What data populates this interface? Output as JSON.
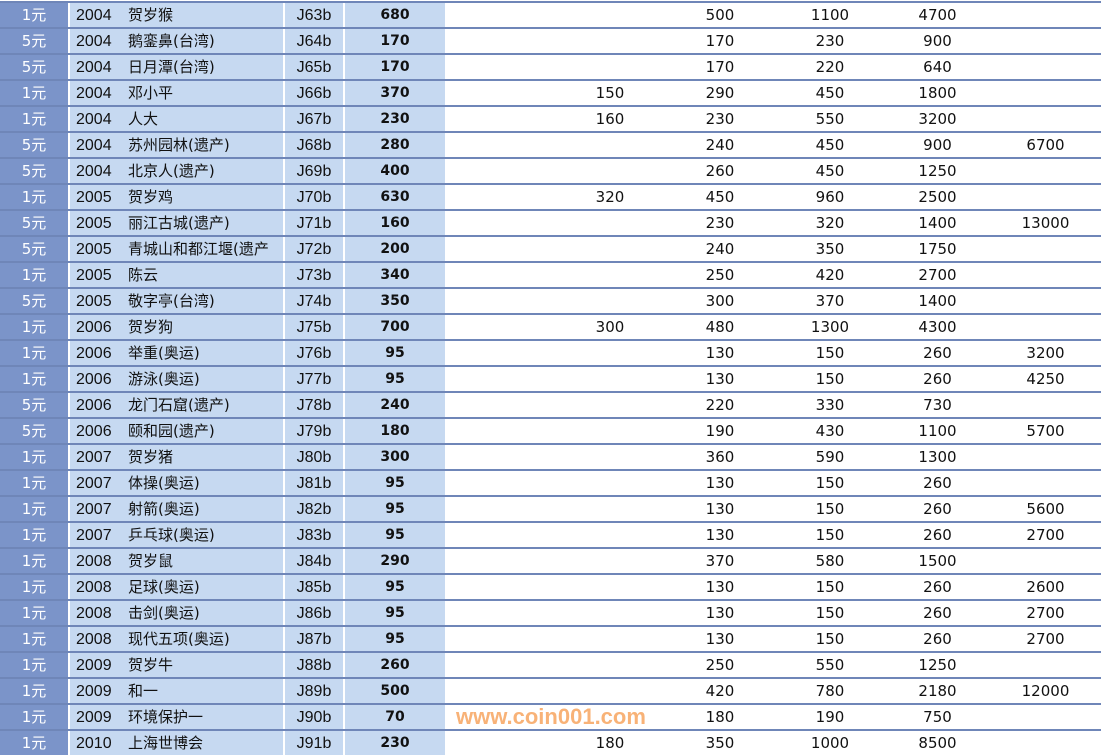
{
  "rows": [
    [
      "1元",
      "2004",
      "贺岁猴",
      "J63b",
      "680",
      "",
      "500",
      "1100",
      "4700",
      ""
    ],
    [
      "5元",
      "2004",
      "鹅銮鼻(台湾)",
      "J64b",
      "170",
      "",
      "170",
      "230",
      "900",
      ""
    ],
    [
      "5元",
      "2004",
      "日月潭(台湾)",
      "J65b",
      "170",
      "",
      "170",
      "220",
      "640",
      ""
    ],
    [
      "1元",
      "2004",
      "邓小平",
      "J66b",
      "370",
      "150",
      "290",
      "450",
      "1800",
      ""
    ],
    [
      "1元",
      "2004",
      "人大",
      "J67b",
      "230",
      "160",
      "230",
      "550",
      "3200",
      ""
    ],
    [
      "5元",
      "2004",
      "苏州园林(遗产)",
      "J68b",
      "280",
      "",
      "240",
      "450",
      "900",
      "6700"
    ],
    [
      "5元",
      "2004",
      "北京人(遗产)",
      "J69b",
      "400",
      "",
      "260",
      "450",
      "1250",
      ""
    ],
    [
      "1元",
      "2005",
      "贺岁鸡",
      "J70b",
      "630",
      "320",
      "450",
      "960",
      "2500",
      ""
    ],
    [
      "5元",
      "2005",
      "丽江古城(遗产)",
      "J71b",
      "160",
      "",
      "230",
      "320",
      "1400",
      "13000"
    ],
    [
      "5元",
      "2005",
      "青城山和都江堰(遗产",
      "J72b",
      "200",
      "",
      "240",
      "350",
      "1750",
      ""
    ],
    [
      "1元",
      "2005",
      "陈云",
      "J73b",
      "340",
      "",
      "250",
      "420",
      "2700",
      ""
    ],
    [
      "5元",
      "2005",
      "敬字亭(台湾)",
      "J74b",
      "350",
      "",
      "300",
      "370",
      "1400",
      ""
    ],
    [
      "1元",
      "2006",
      "贺岁狗",
      "J75b",
      "700",
      "300",
      "480",
      "1300",
      "4300",
      ""
    ],
    [
      "1元",
      "2006",
      "举重(奥运)",
      "J76b",
      "95",
      "",
      "130",
      "150",
      "260",
      "3200"
    ],
    [
      "1元",
      "2006",
      "游泳(奥运)",
      "J77b",
      "95",
      "",
      "130",
      "150",
      "260",
      "4250"
    ],
    [
      "5元",
      "2006",
      "龙门石窟(遗产)",
      "J78b",
      "240",
      "",
      "220",
      "330",
      "730",
      ""
    ],
    [
      "5元",
      "2006",
      "颐和园(遗产)",
      "J79b",
      "180",
      "",
      "190",
      "430",
      "1100",
      "5700"
    ],
    [
      "1元",
      "2007",
      "贺岁猪",
      "J80b",
      "300",
      "",
      "360",
      "590",
      "1300",
      ""
    ],
    [
      "1元",
      "2007",
      "体操(奥运)",
      "J81b",
      "95",
      "",
      "130",
      "150",
      "260",
      ""
    ],
    [
      "1元",
      "2007",
      "射箭(奥运)",
      "J82b",
      "95",
      "",
      "130",
      "150",
      "260",
      "5600"
    ],
    [
      "1元",
      "2007",
      "乒乓球(奥运)",
      "J83b",
      "95",
      "",
      "130",
      "150",
      "260",
      "2700"
    ],
    [
      "1元",
      "2008",
      "贺岁鼠",
      "J84b",
      "290",
      "",
      "370",
      "580",
      "1500",
      ""
    ],
    [
      "1元",
      "2008",
      "足球(奥运)",
      "J85b",
      "95",
      "",
      "130",
      "150",
      "260",
      "2600"
    ],
    [
      "1元",
      "2008",
      "击剑(奥运)",
      "J86b",
      "95",
      "",
      "130",
      "150",
      "260",
      "2700"
    ],
    [
      "1元",
      "2008",
      "现代五项(奥运)",
      "J87b",
      "95",
      "",
      "130",
      "150",
      "260",
      "2700"
    ],
    [
      "1元",
      "2009",
      "贺岁牛",
      "J88b",
      "260",
      "",
      "250",
      "550",
      "1250",
      ""
    ],
    [
      "1元",
      "2009",
      "和一",
      "J89b",
      "500",
      "",
      "420",
      "780",
      "2180",
      "12000"
    ],
    [
      "1元",
      "2009",
      "环境保护一",
      "J90b",
      "70",
      "",
      "180",
      "190",
      "750",
      ""
    ],
    [
      "1元",
      "2010",
      "上海世博会",
      "J91b",
      "230",
      "180",
      "350",
      "1000",
      "8500",
      ""
    ]
  ],
  "watermark": "www.coin001.com"
}
